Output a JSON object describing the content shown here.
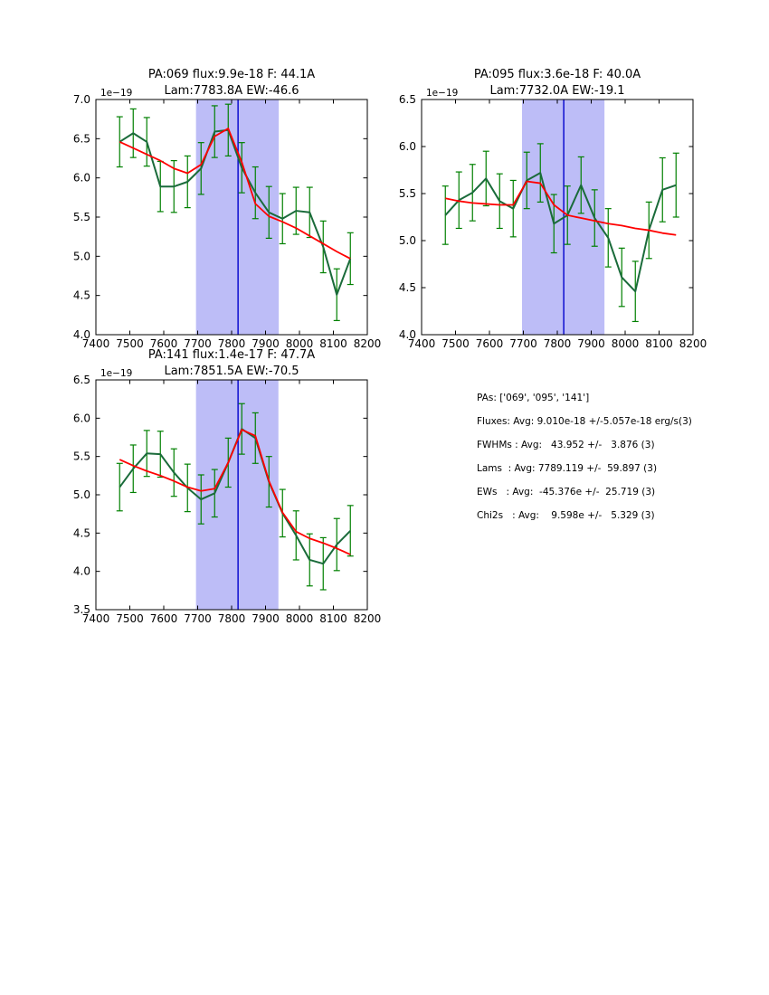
{
  "figure": {
    "background": "#ffffff"
  },
  "colors": {
    "data_line": "#1a6b3a",
    "error_bar": "#008000",
    "fit_line": "#ff0000",
    "band_fill": "#bdbdf7",
    "center_line": "#0000cc",
    "axis": "#000000",
    "text": "#000000"
  },
  "stats_panel": {
    "lines": [
      "PAs: ['069', '095', '141']",
      "Fluxes: Avg: 9.010e-18 +/-5.057e-18 erg/s(3)",
      "FWHMs : Avg:   43.952 +/-   3.876 (3)",
      "Lams  : Avg: 7789.119 +/-  59.897 (3)",
      "EWs   : Avg:  -45.376e +/-  25.719 (3)",
      "Chi2s   : Avg:    9.598e +/-   5.329 (3)"
    ]
  },
  "chart_data": [
    {
      "type": "line",
      "title_line1": "PA:069 flux:9.9e-18 F: 44.1A",
      "title_line2": "Lam:7783.8A EW:-46.6",
      "y_offset_label": "1e−19",
      "xlim": [
        7400,
        8200
      ],
      "ylim": [
        4.0,
        7.0
      ],
      "xticks": [
        7400,
        7500,
        7600,
        7700,
        7800,
        7900,
        8000,
        8100,
        8200
      ],
      "yticks": [
        4.0,
        4.5,
        5.0,
        5.5,
        6.0,
        6.5,
        7.0
      ],
      "band": [
        7695,
        7939
      ],
      "vline": 7819,
      "grid": false,
      "legend": "none",
      "x": [
        7470,
        7510,
        7550,
        7590,
        7630,
        7670,
        7710,
        7750,
        7790,
        7830,
        7870,
        7910,
        7950,
        7990,
        8030,
        8070,
        8110,
        8150
      ],
      "series": [
        {
          "name": "spectrum",
          "values": [
            6.46,
            6.57,
            6.46,
            5.89,
            5.89,
            5.95,
            6.12,
            6.59,
            6.61,
            6.13,
            5.81,
            5.56,
            5.48,
            5.58,
            5.56,
            5.12,
            4.51,
            4.97
          ],
          "errors": [
            0.32,
            0.31,
            0.31,
            0.32,
            0.33,
            0.33,
            0.33,
            0.33,
            0.33,
            0.32,
            0.33,
            0.33,
            0.32,
            0.3,
            0.32,
            0.33,
            0.33,
            0.33
          ]
        },
        {
          "name": "fit",
          "values": [
            6.46,
            6.38,
            6.3,
            6.22,
            6.12,
            6.06,
            6.17,
            6.53,
            6.63,
            6.2,
            5.67,
            5.51,
            5.44,
            5.36,
            5.26,
            5.16,
            5.06,
            4.97
          ]
        }
      ]
    },
    {
      "type": "line",
      "title_line1": "PA:095 flux:3.6e-18 F: 40.0A",
      "title_line2": "Lam:7732.0A EW:-19.1",
      "y_offset_label": "1e−19",
      "xlim": [
        7400,
        8200
      ],
      "ylim": [
        4.0,
        6.5
      ],
      "xticks": [
        7400,
        7500,
        7600,
        7700,
        7800,
        7900,
        8000,
        8100,
        8200
      ],
      "yticks": [
        4.0,
        4.5,
        5.0,
        5.5,
        6.0,
        6.5
      ],
      "band": [
        7696,
        7939
      ],
      "vline": 7819,
      "grid": false,
      "legend": "none",
      "x": [
        7470,
        7510,
        7550,
        7590,
        7630,
        7670,
        7710,
        7750,
        7790,
        7830,
        7870,
        7910,
        7950,
        7990,
        8030,
        8070,
        8110,
        8150
      ],
      "series": [
        {
          "name": "spectrum",
          "values": [
            5.27,
            5.43,
            5.51,
            5.66,
            5.42,
            5.34,
            5.64,
            5.72,
            5.18,
            5.27,
            5.59,
            5.24,
            5.03,
            4.61,
            4.46,
            5.11,
            5.54,
            5.59
          ],
          "errors": [
            0.31,
            0.3,
            0.3,
            0.29,
            0.29,
            0.3,
            0.3,
            0.31,
            0.31,
            0.31,
            0.3,
            0.3,
            0.31,
            0.31,
            0.32,
            0.3,
            0.34,
            0.34
          ]
        },
        {
          "name": "fit",
          "values": [
            5.45,
            5.42,
            5.4,
            5.39,
            5.38,
            5.38,
            5.63,
            5.61,
            5.38,
            5.27,
            5.24,
            5.21,
            5.18,
            5.16,
            5.13,
            5.11,
            5.08,
            5.06
          ]
        }
      ]
    },
    {
      "type": "line",
      "title_line1": "PA:141 flux:1.4e-17 F: 47.7A",
      "title_line2": "Lam:7851.5A EW:-70.5",
      "y_offset_label": "1e−19",
      "xlim": [
        7400,
        8200
      ],
      "ylim": [
        3.5,
        6.5
      ],
      "xticks": [
        7400,
        7500,
        7600,
        7700,
        7800,
        7900,
        8000,
        8100,
        8200
      ],
      "yticks": [
        3.5,
        4.0,
        4.5,
        5.0,
        5.5,
        6.0,
        6.5
      ],
      "band": [
        7695,
        7938
      ],
      "vline": 7819,
      "grid": false,
      "legend": "none",
      "x": [
        7470,
        7510,
        7550,
        7590,
        7630,
        7670,
        7710,
        7750,
        7790,
        7830,
        7870,
        7910,
        7950,
        7990,
        8030,
        8070,
        8110,
        8150
      ],
      "series": [
        {
          "name": "spectrum",
          "values": [
            5.1,
            5.34,
            5.54,
            5.53,
            5.29,
            5.09,
            4.94,
            5.02,
            5.42,
            5.86,
            5.74,
            5.17,
            4.76,
            4.47,
            4.15,
            4.1,
            4.35,
            4.53
          ],
          "errors": [
            0.31,
            0.31,
            0.3,
            0.3,
            0.31,
            0.31,
            0.32,
            0.31,
            0.32,
            0.33,
            0.33,
            0.33,
            0.31,
            0.32,
            0.34,
            0.34,
            0.34,
            0.33
          ]
        },
        {
          "name": "fit",
          "values": [
            5.46,
            5.38,
            5.31,
            5.25,
            5.18,
            5.1,
            5.05,
            5.08,
            5.42,
            5.85,
            5.77,
            5.18,
            4.77,
            4.52,
            4.43,
            4.37,
            4.3,
            4.22
          ]
        }
      ]
    }
  ]
}
